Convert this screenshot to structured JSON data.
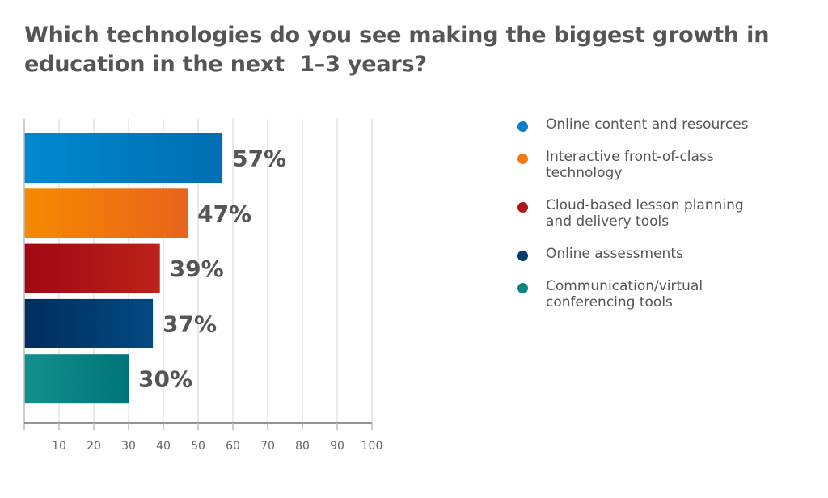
{
  "title_lines": [
    "Which technologies do you see making the biggest growth in",
    "education in the next  1–3 years?"
  ],
  "chart_data": {
    "type": "bar",
    "orientation": "horizontal",
    "title": "Which technologies do you see making the biggest growth in education in the next 1–3 years?",
    "categories": [
      "Online content and resources",
      "Interactive front-of-class technology",
      "Cloud-based lesson planning and delivery tools",
      "Online assessments",
      "Communication/virtual conferencing tools"
    ],
    "values": [
      57,
      47,
      39,
      37,
      30
    ],
    "data_labels": [
      "57%",
      "47%",
      "39%",
      "37%",
      "30%"
    ],
    "colors": [
      [
        "#0089d0",
        "#006eb0"
      ],
      [
        "#f68a00",
        "#e8631a"
      ],
      [
        "#a00816",
        "#bb2219"
      ],
      [
        "#002d5e",
        "#034a80"
      ],
      [
        "#13918c",
        "#007479"
      ]
    ],
    "xlabel": "",
    "ylabel": "",
    "xlim": [
      0,
      100
    ],
    "xticks": [
      10,
      20,
      30,
      40,
      50,
      60,
      70,
      80,
      90,
      100
    ],
    "grid": true,
    "legend_position": "right"
  },
  "legend": [
    {
      "lines": [
        "Online content and resources"
      ],
      "color": "#0a7ecb"
    },
    {
      "lines": [
        "Interactive front-of-class",
        "technology"
      ],
      "color": "#f27a10"
    },
    {
      "lines": [
        "Cloud-based lesson planning",
        "and delivery tools"
      ],
      "color": "#ad1519"
    },
    {
      "lines": [
        "Online assessments"
      ],
      "color": "#053b6e"
    },
    {
      "lines": [
        "Communication/virtual",
        "conferencing tools"
      ],
      "color": "#0b8580"
    }
  ]
}
